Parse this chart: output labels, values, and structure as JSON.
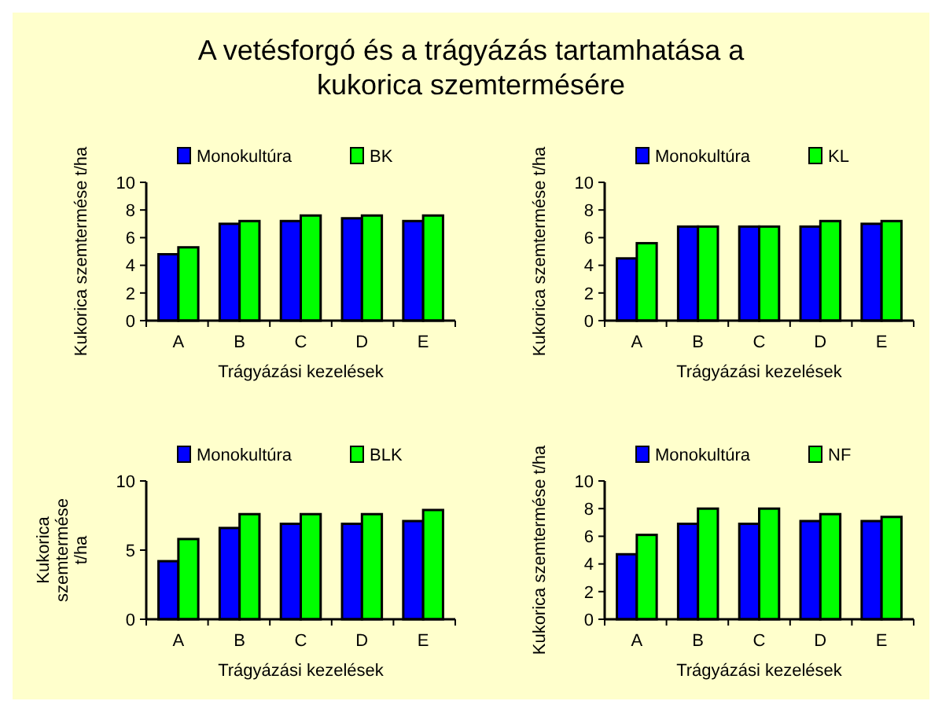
{
  "chart_data": [
    {
      "type": "bar",
      "title": "A vetésforgó és a trágyázás tartamhatása a kukorica szemtermésére",
      "categories": [
        "A",
        "B",
        "C",
        "D",
        "E"
      ],
      "xlabel": "Trágyázási kezelések",
      "ylabel": "Kukorica szemtermése t/ha",
      "ylim": [
        0,
        10
      ],
      "yticks": [
        0,
        2,
        4,
        6,
        8,
        10
      ],
      "legend": "top",
      "grid": false,
      "series": [
        {
          "name": "Monokultúra",
          "color": "#0000ff",
          "values": [
            4.8,
            7.0,
            7.2,
            7.4,
            7.2
          ]
        },
        {
          "name": "BK",
          "color": "#00ff00",
          "values": [
            5.3,
            7.2,
            7.6,
            7.6,
            7.6
          ]
        }
      ]
    },
    {
      "type": "bar",
      "categories": [
        "A",
        "B",
        "C",
        "D",
        "E"
      ],
      "xlabel": "Trágyázási kezelések",
      "ylabel": "Kukorica szemtermése t/ha",
      "ylim": [
        0,
        10
      ],
      "yticks": [
        0,
        2,
        4,
        6,
        8,
        10
      ],
      "legend": "top",
      "grid": false,
      "series": [
        {
          "name": "Monokultúra",
          "color": "#0000ff",
          "values": [
            4.5,
            6.8,
            6.8,
            6.8,
            7.0
          ]
        },
        {
          "name": "KL",
          "color": "#00ff00",
          "values": [
            5.6,
            6.8,
            6.8,
            7.2,
            7.2
          ]
        }
      ]
    },
    {
      "type": "bar",
      "categories": [
        "A",
        "B",
        "C",
        "D",
        "E"
      ],
      "xlabel": "Trágyázási kezelések",
      "ylabel": "Kukorica szemtermése t/ha",
      "ylim": [
        0,
        10
      ],
      "yticks": [
        0,
        5,
        10
      ],
      "legend": "top",
      "grid": false,
      "series": [
        {
          "name": "Monokultúra",
          "color": "#0000ff",
          "values": [
            4.2,
            6.6,
            6.9,
            6.9,
            7.1
          ]
        },
        {
          "name": "BLK",
          "color": "#00ff00",
          "values": [
            5.8,
            7.6,
            7.6,
            7.6,
            7.9
          ]
        }
      ]
    },
    {
      "type": "bar",
      "categories": [
        "A",
        "B",
        "C",
        "D",
        "E"
      ],
      "xlabel": "Trágyázási kezelések",
      "ylabel": "Kukorica szemtermése t/ha",
      "ylim": [
        0,
        10
      ],
      "yticks": [
        0,
        2,
        4,
        6,
        8,
        10
      ],
      "legend": "top",
      "grid": false,
      "series": [
        {
          "name": "Monokultúra",
          "color": "#0000ff",
          "values": [
            4.7,
            6.9,
            6.9,
            7.1,
            7.1
          ]
        },
        {
          "name": "NF",
          "color": "#00ff00",
          "values": [
            6.1,
            8.0,
            8.0,
            7.6,
            7.4
          ]
        }
      ]
    }
  ]
}
